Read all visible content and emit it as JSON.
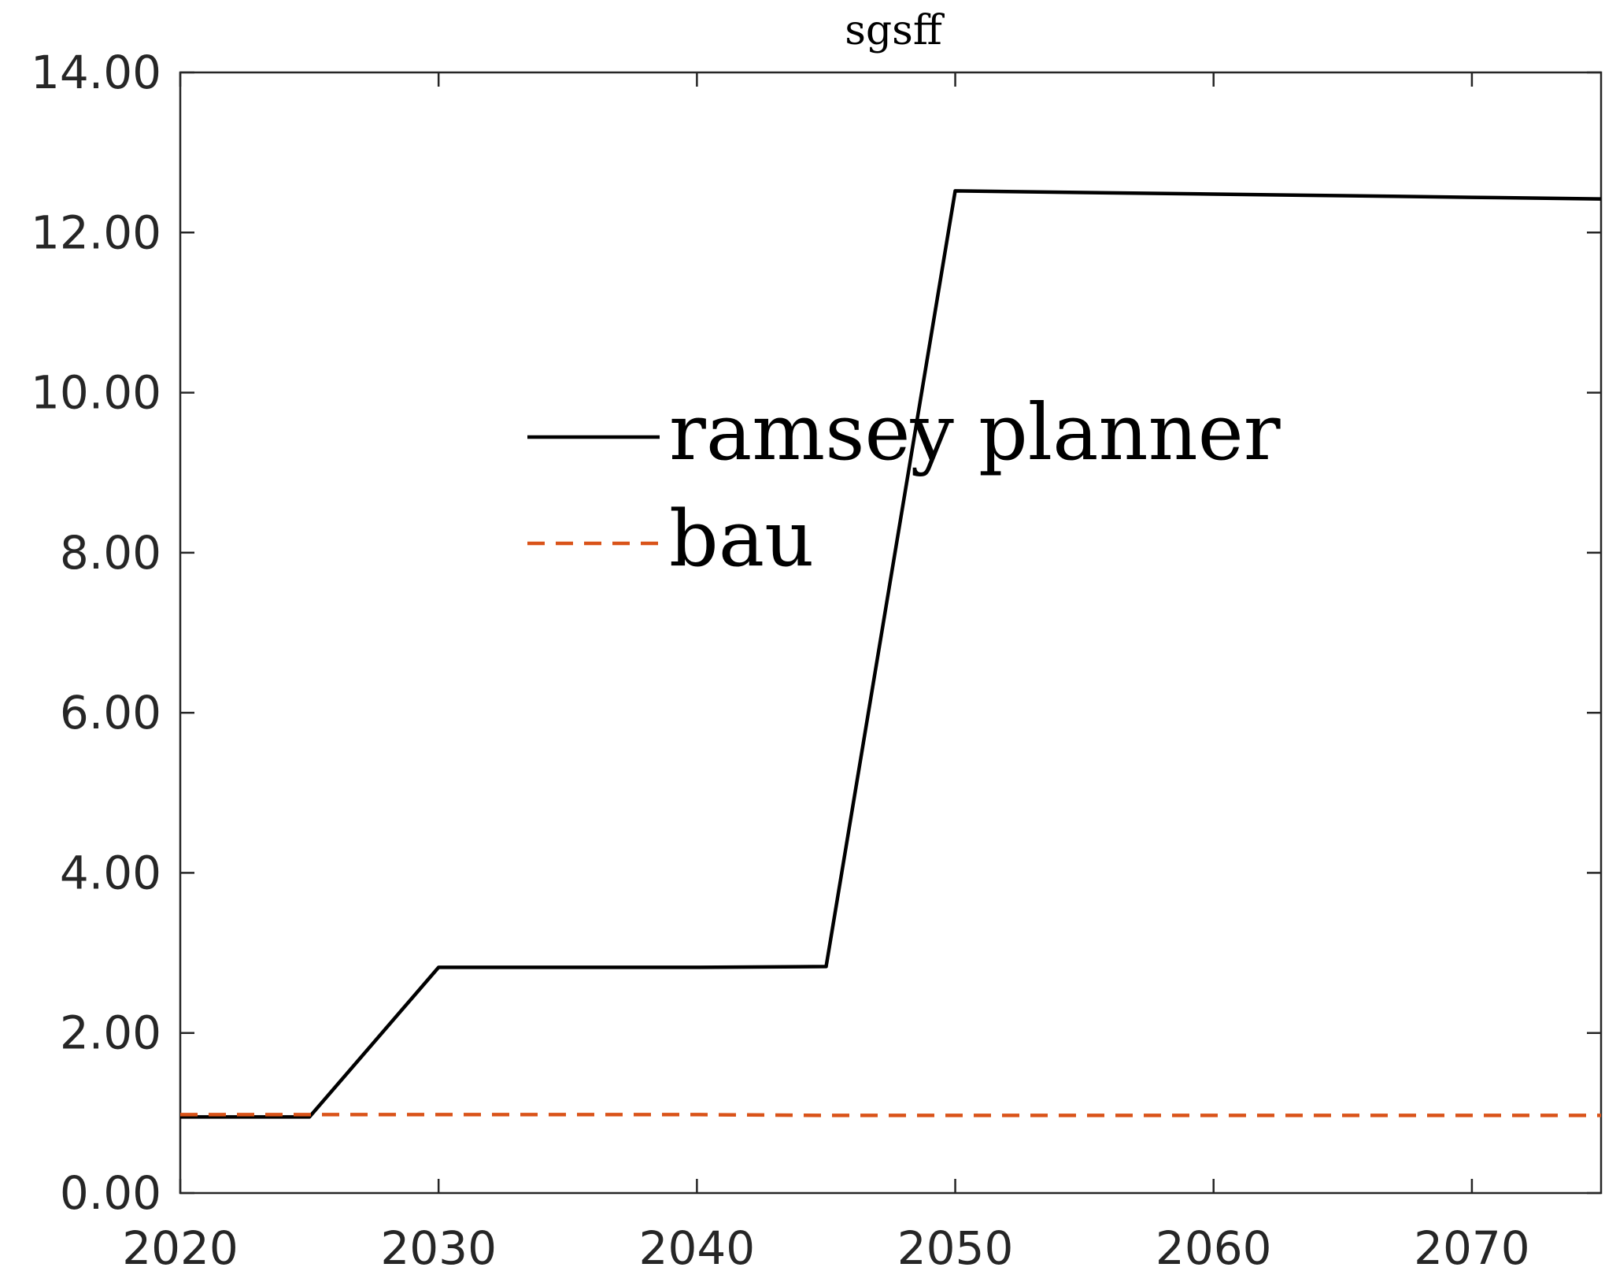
{
  "chart_data": {
    "type": "line",
    "title": "sgsff",
    "xlabel": "",
    "ylabel": "",
    "xlim": [
      2020,
      2075
    ],
    "ylim": [
      0,
      14
    ],
    "xticks": [
      2020,
      2030,
      2040,
      2050,
      2060,
      2070
    ],
    "yticks": [
      0,
      2,
      4,
      6,
      8,
      10,
      12,
      14
    ],
    "xtick_labels": [
      "2020",
      "2030",
      "2040",
      "2050",
      "2060",
      "2070"
    ],
    "ytick_labels": [
      "0.00",
      "2.00",
      "4.00",
      "6.00",
      "8.00",
      "10.00",
      "12.00",
      "14.00"
    ],
    "grid": false,
    "legend_position": "center",
    "series": [
      {
        "name": "ramsey planner",
        "color": "#000000",
        "style": "solid",
        "x": [
          2020,
          2025,
          2030,
          2035,
          2040,
          2045,
          2050,
          2055,
          2060,
          2065,
          2070,
          2075
        ],
        "y": [
          0.95,
          0.95,
          2.82,
          2.82,
          2.82,
          2.83,
          12.52,
          12.5,
          12.48,
          12.46,
          12.44,
          12.42
        ]
      },
      {
        "name": "bau",
        "color": "#D95319",
        "style": "dashed",
        "x": [
          2020,
          2025,
          2030,
          2035,
          2040,
          2045,
          2050,
          2055,
          2060,
          2065,
          2070,
          2075
        ],
        "y": [
          0.98,
          0.98,
          0.98,
          0.98,
          0.98,
          0.97,
          0.97,
          0.97,
          0.97,
          0.97,
          0.97,
          0.97
        ]
      }
    ]
  }
}
